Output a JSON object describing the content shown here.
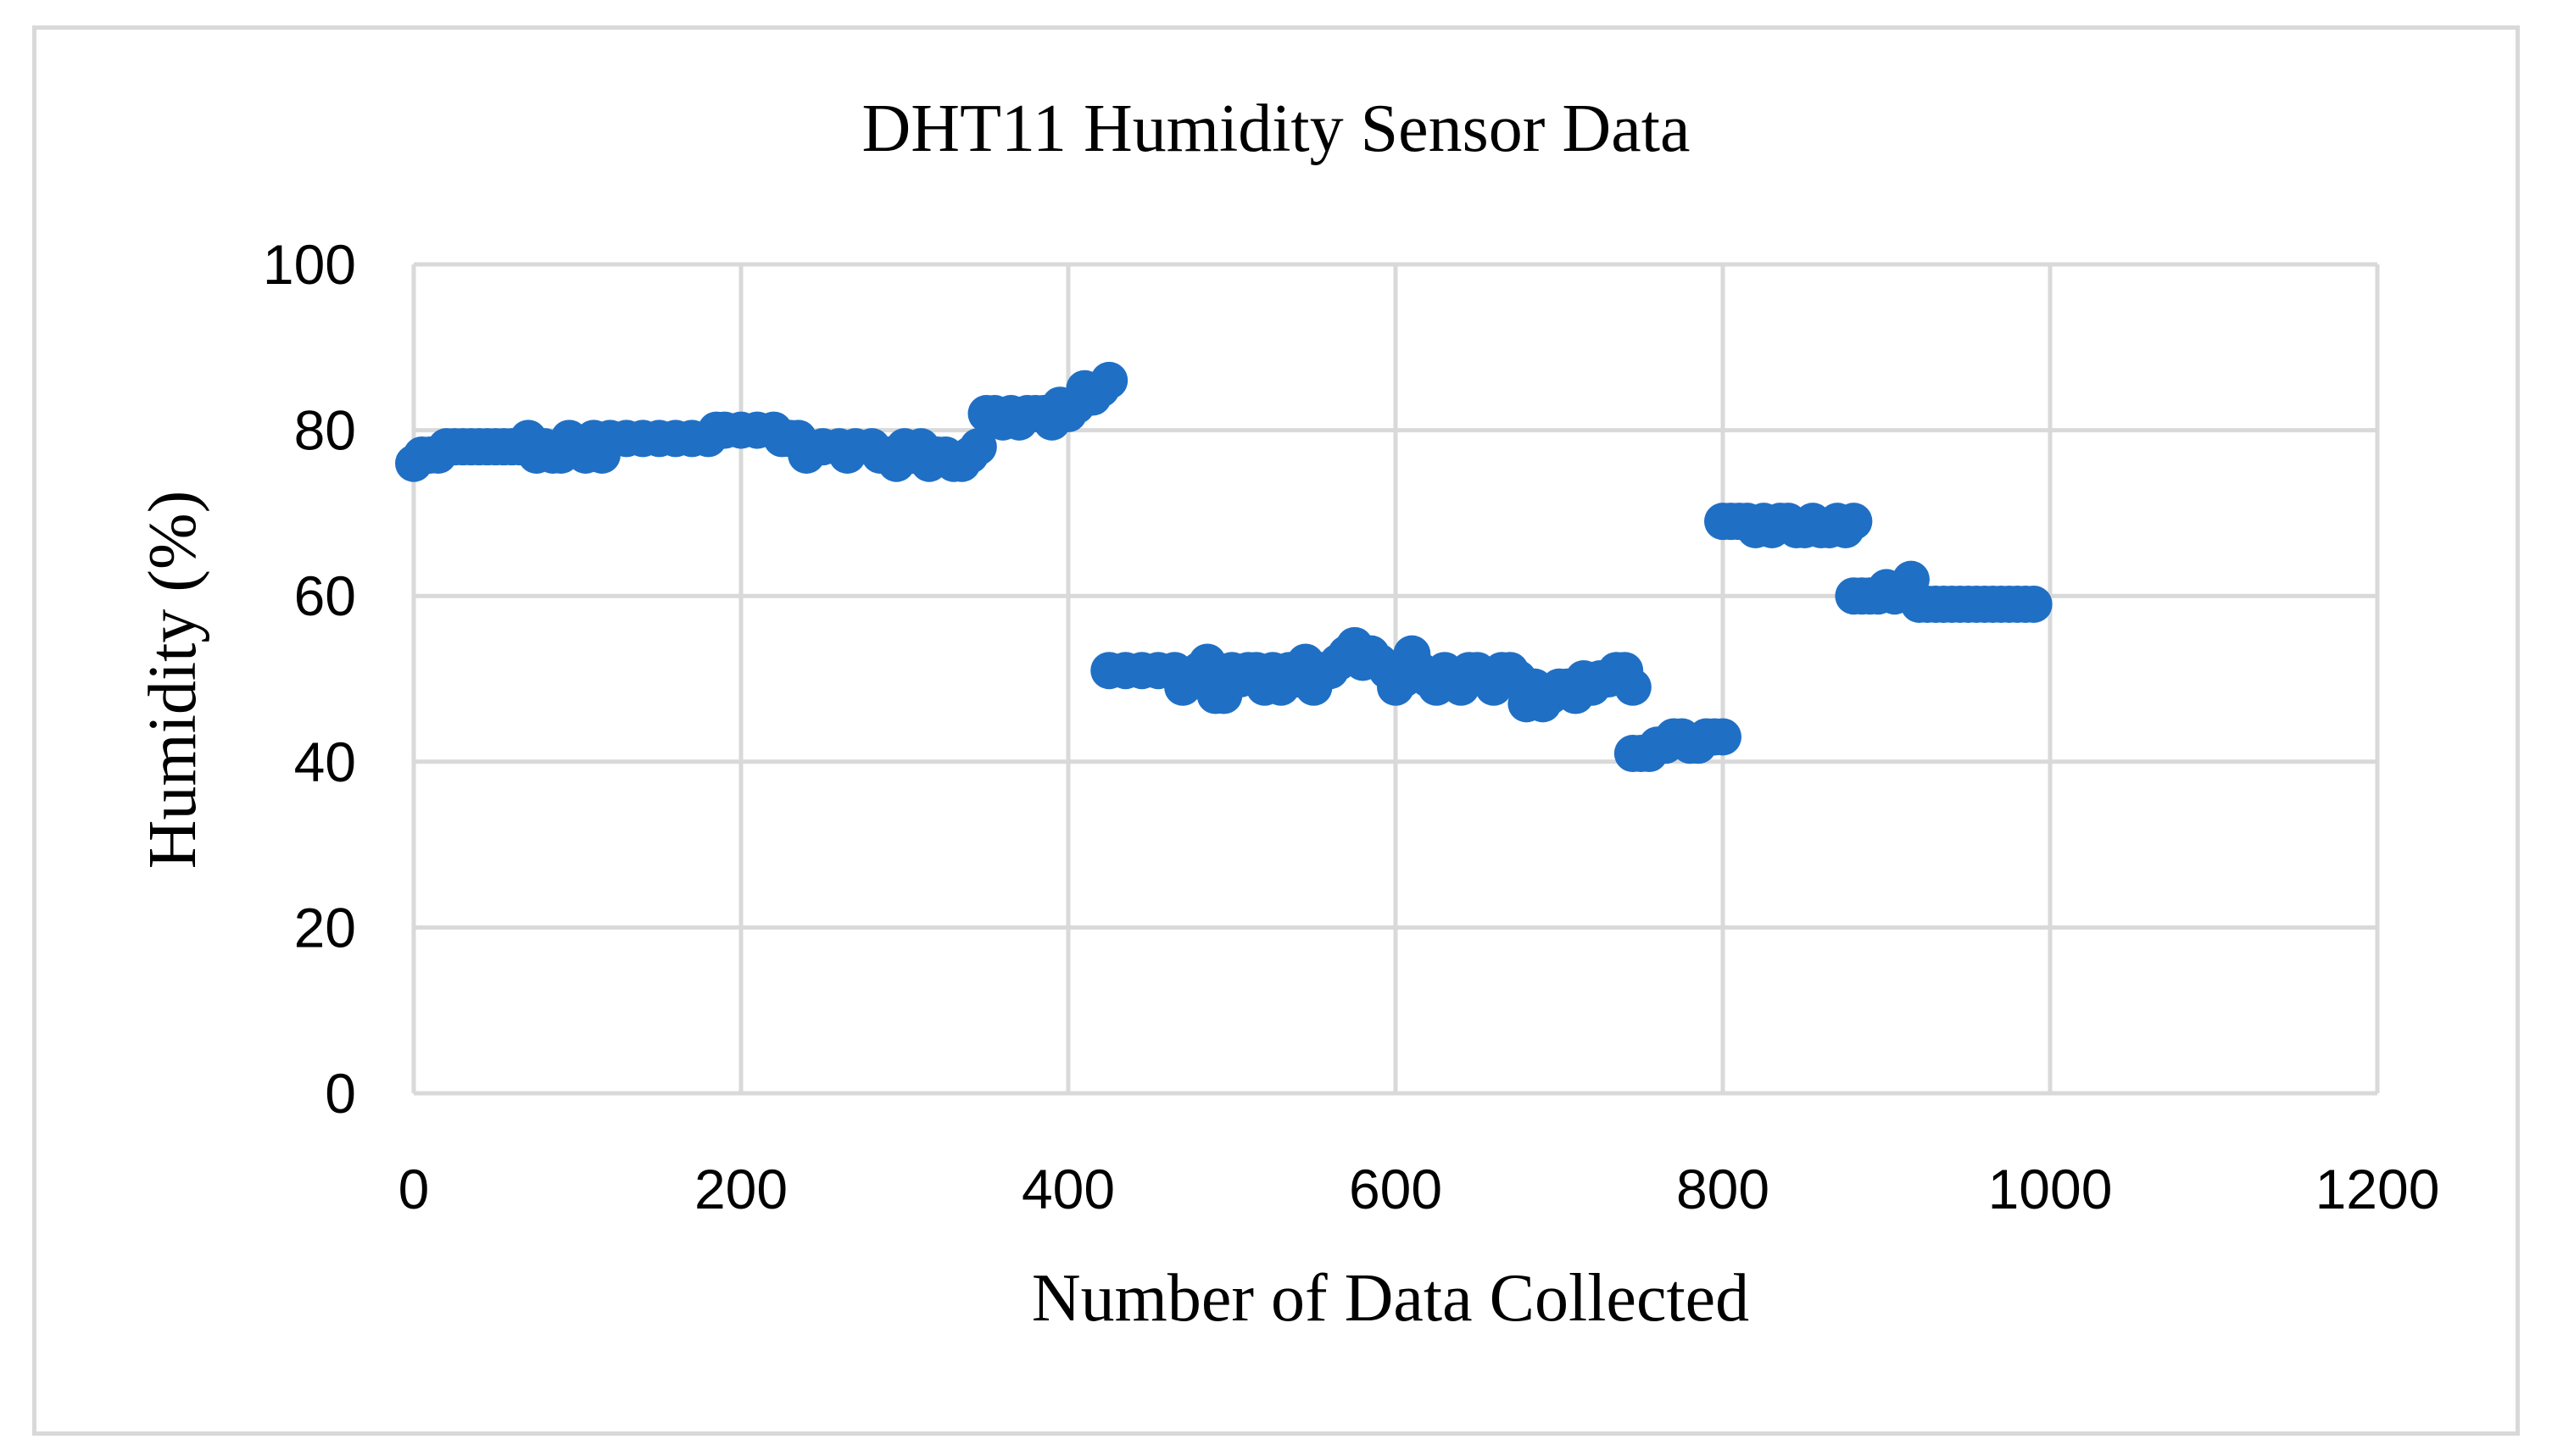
{
  "chart_data": {
    "type": "scatter",
    "title": "DHT11 Humidity Sensor Data",
    "xlabel": "Number of Data Collected",
    "ylabel": "Humidity (%)",
    "xlim": [
      0,
      1200
    ],
    "ylim": [
      0,
      100
    ],
    "xticks": [
      0,
      200,
      400,
      600,
      800,
      1000,
      1200
    ],
    "yticks": [
      0,
      20,
      40,
      60,
      80,
      100
    ],
    "grid": true,
    "legend": "none",
    "marker_color": "#1f6fc5",
    "series": [
      {
        "x": [
          0,
          5,
          10,
          15,
          20,
          25,
          30,
          35,
          40,
          45,
          50,
          55,
          60,
          65,
          70,
          75,
          80,
          85,
          90,
          95,
          100,
          105,
          110,
          115,
          120,
          130,
          140,
          150,
          160,
          170,
          180,
          185,
          190,
          200,
          210,
          220,
          225,
          230,
          235,
          240,
          250,
          260,
          265,
          270,
          280,
          285,
          290,
          295,
          300,
          305,
          310,
          315,
          320,
          325,
          330,
          335,
          340,
          345,
          350,
          355,
          360,
          365,
          370,
          375,
          380,
          385,
          390,
          395,
          400,
          405,
          410,
          415,
          420,
          425
        ],
        "y": [
          76,
          77,
          77,
          77,
          78,
          78,
          78,
          78,
          78,
          78,
          78,
          78,
          78,
          78,
          79,
          77,
          78,
          77,
          77,
          79,
          78,
          77,
          79,
          77,
          79,
          79,
          79,
          79,
          79,
          79,
          79,
          80,
          80,
          80,
          80,
          80,
          79,
          79,
          79,
          77,
          78,
          78,
          77,
          78,
          78,
          77,
          77,
          76,
          78,
          77,
          78,
          76,
          77,
          77,
          76,
          76,
          77,
          78,
          82,
          82,
          81,
          82,
          81,
          82,
          82,
          82,
          81,
          83,
          82,
          83,
          85,
          84,
          85,
          86
        ]
      },
      {
        "x": [
          425,
          435,
          445,
          455,
          465,
          470,
          475,
          480,
          485,
          490,
          495,
          500,
          505,
          510,
          515,
          520,
          525,
          530,
          535,
          540,
          545,
          550,
          555,
          560,
          565,
          570,
          575,
          580,
          585,
          590,
          595,
          600,
          605,
          610,
          615,
          620,
          625,
          630,
          635,
          640,
          645,
          650,
          655,
          660,
          665,
          670,
          675,
          680,
          685,
          690,
          695,
          700,
          705,
          710,
          715,
          720,
          725,
          730,
          735,
          740,
          745
        ],
        "y": [
          51,
          51,
          51,
          51,
          51,
          49,
          50,
          51,
          52,
          48,
          48,
          51,
          50,
          51,
          51,
          49,
          51,
          49,
          51,
          50,
          52,
          49,
          51,
          51,
          52,
          53,
          54,
          52,
          53,
          52,
          51,
          49,
          50,
          53,
          51,
          50,
          49,
          51,
          50,
          49,
          51,
          51,
          50,
          49,
          51,
          51,
          50,
          47,
          49,
          47,
          48,
          49,
          49,
          48,
          50,
          49,
          50,
          50,
          51,
          51,
          49
        ]
      },
      {
        "x": [
          745,
          750,
          755,
          760,
          765,
          770,
          775,
          780,
          785,
          790,
          795,
          800
        ],
        "y": [
          41,
          41,
          41,
          42,
          42,
          43,
          43,
          42,
          42,
          43,
          43,
          43
        ]
      },
      {
        "x": [
          800,
          805,
          810,
          815,
          820,
          825,
          830,
          835,
          840,
          845,
          850,
          855,
          860,
          865,
          870,
          875,
          880
        ],
        "y": [
          69,
          69,
          69,
          69,
          68,
          69,
          68,
          69,
          69,
          68,
          68,
          69,
          68,
          68,
          69,
          68,
          69
        ]
      },
      {
        "x": [
          880,
          885,
          890,
          895,
          900,
          905,
          910,
          915,
          920,
          925,
          930,
          935,
          940,
          945,
          950,
          955,
          960,
          965,
          970,
          975,
          980,
          985,
          990
        ],
        "y": [
          60,
          60,
          60,
          60,
          61,
          60,
          61,
          62,
          59,
          59,
          59,
          59,
          59,
          59,
          59,
          59,
          59,
          59,
          59,
          59,
          59,
          59,
          59
        ]
      }
    ]
  }
}
